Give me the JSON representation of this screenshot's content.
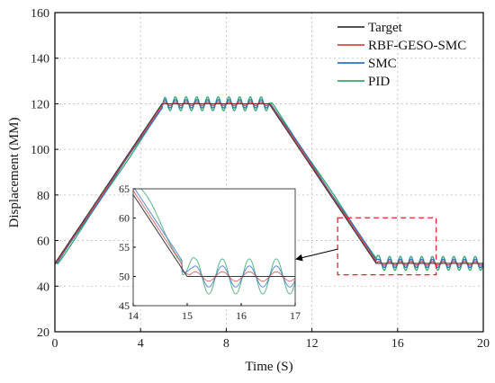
{
  "chart_data": {
    "type": "line",
    "title": "",
    "xlabel": "Time (S)",
    "ylabel": "Displacement (MM)",
    "xlim": [
      0,
      20
    ],
    "ylim": [
      20,
      160
    ],
    "xticks": [
      0,
      4,
      8,
      12,
      16,
      20
    ],
    "yticks": [
      20,
      40,
      60,
      80,
      100,
      120,
      140,
      160
    ],
    "grid": true,
    "legend_position": "top-right",
    "target_profile": {
      "x": [
        0,
        5,
        10,
        15,
        20
      ],
      "y": [
        50,
        120,
        120,
        50,
        50
      ]
    },
    "series": [
      {
        "name": "Target",
        "color": "#3a3a3a",
        "oscillation_amplitude": 0,
        "oscillation_period": 1,
        "lag": 0,
        "trend_bias": 0
      },
      {
        "name": "RBF-GESO-SMC",
        "color": "#e0454a",
        "oscillation_amplitude": 0.8,
        "oscillation_period": 0.5,
        "lag": 0.05,
        "trend_bias": 0.4
      },
      {
        "name": "SMC",
        "color": "#2f6fc6",
        "oscillation_amplitude": 1.8,
        "oscillation_period": 0.5,
        "lag": 0.1,
        "trend_bias": 0.8
      },
      {
        "name": "PID",
        "color": "#2faa6a",
        "oscillation_amplitude": 3.0,
        "oscillation_period": 0.5,
        "lag": 0.15,
        "trend_bias": -0.6
      }
    ],
    "inset": {
      "xlim": [
        14,
        17
      ],
      "ylim": [
        45,
        65
      ],
      "xticks": [
        14,
        15,
        16,
        17
      ],
      "yticks": [
        45,
        50,
        55,
        60,
        65
      ],
      "zoom_box": {
        "x": [
          13.2,
          17.8
        ],
        "y": [
          45,
          70
        ]
      }
    }
  }
}
